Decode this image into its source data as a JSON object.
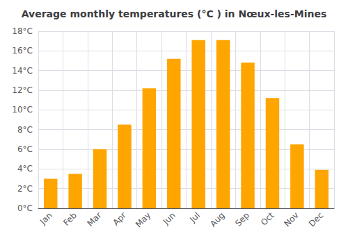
{
  "chart_data": {
    "type": "bar",
    "title": "Average monthly temperatures (°C ) in Nœux-les-Mines",
    "categories": [
      "Jan",
      "Feb",
      "Mar",
      "Apr",
      "May",
      "Jun",
      "Jul",
      "Aug",
      "Sep",
      "Oct",
      "Nov",
      "Dec"
    ],
    "values": [
      3.0,
      3.5,
      6.0,
      8.5,
      12.2,
      15.2,
      17.1,
      17.1,
      14.8,
      11.2,
      6.5,
      3.9
    ],
    "color": "#FFA500",
    "ylim": [
      0,
      18
    ],
    "yticks": [
      {
        "value": 0,
        "label": "0°C"
      },
      {
        "value": 2,
        "label": "2°C"
      },
      {
        "value": 4,
        "label": "4°C"
      },
      {
        "value": 6,
        "label": "6°C"
      },
      {
        "value": 8,
        "label": "8°C"
      },
      {
        "value": 10,
        "label": "10°C"
      },
      {
        "value": 12,
        "label": "12°C"
      },
      {
        "value": 14,
        "label": "14°C"
      },
      {
        "value": 16,
        "label": "16°C"
      },
      {
        "value": 18,
        "label": "18°C"
      }
    ],
    "grid": true
  }
}
